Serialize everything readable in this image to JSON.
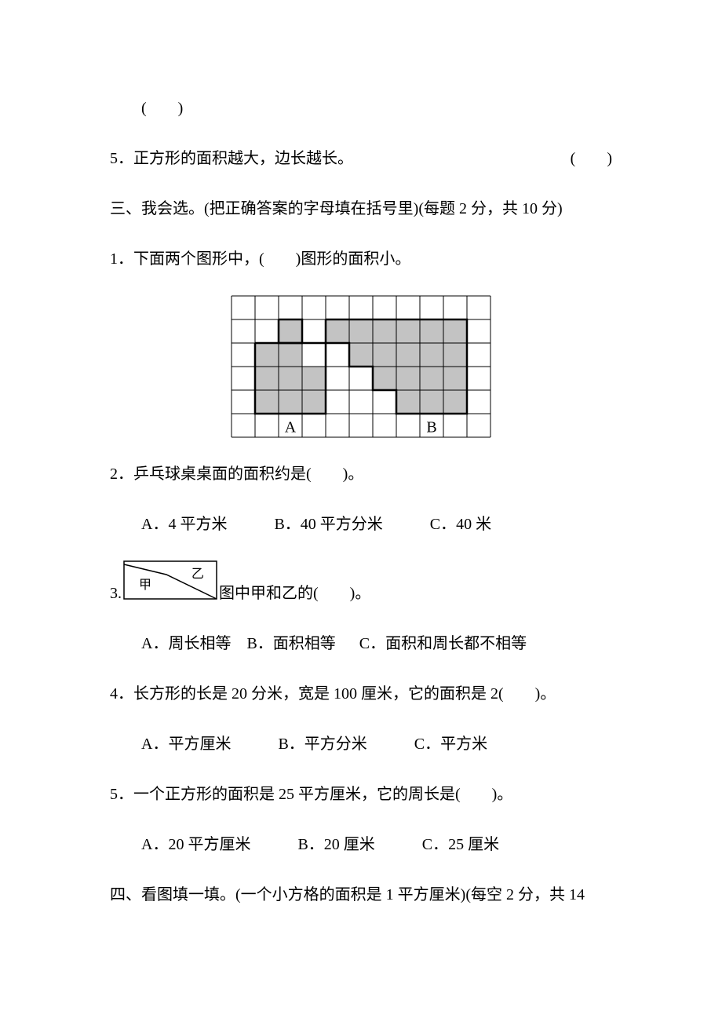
{
  "blank_paren": "(　　)",
  "q_prev_5": "5．正方形的面积越大，边长越长。",
  "q_prev_5_paren": "(　　)",
  "section3_title": "三、我会选。(把正确答案的字母填在括号里)(每题 2 分，共 10 分)",
  "s3q1": "1．下面两个图形中，(　　)图形的面积小。",
  "grid": {
    "cell": 30,
    "cols": 11,
    "rows": 6,
    "stroke": "#000000",
    "fill_shape": "#c3c3c3",
    "bg": "#ffffff",
    "labelA": "A",
    "labelB": "B",
    "labelA_pos": {
      "col": 2,
      "row": 5
    },
    "labelB_pos": {
      "col": 8,
      "row": 5
    },
    "shaded": [
      [
        2,
        1
      ],
      [
        1,
        2
      ],
      [
        2,
        2
      ],
      [
        1,
        3
      ],
      [
        2,
        3
      ],
      [
        3,
        3
      ],
      [
        1,
        4
      ],
      [
        2,
        4
      ],
      [
        3,
        4
      ],
      [
        4,
        1
      ],
      [
        5,
        1
      ],
      [
        6,
        1
      ],
      [
        7,
        1
      ],
      [
        8,
        1
      ],
      [
        9,
        1
      ],
      [
        5,
        2
      ],
      [
        6,
        2
      ],
      [
        7,
        2
      ],
      [
        8,
        2
      ],
      [
        9,
        2
      ],
      [
        6,
        3
      ],
      [
        7,
        3
      ],
      [
        8,
        3
      ],
      [
        9,
        3
      ],
      [
        7,
        4
      ],
      [
        8,
        4
      ],
      [
        9,
        4
      ]
    ],
    "boldA": [
      [
        1,
        2
      ],
      [
        4,
        2
      ],
      [
        4,
        5
      ],
      [
        1,
        5
      ]
    ],
    "boldA_step": [
      [
        2,
        1
      ],
      [
        3,
        1
      ],
      [
        3,
        2
      ],
      [
        2,
        2
      ]
    ],
    "boldB": [
      [
        4,
        1
      ],
      [
        10,
        1
      ],
      [
        10,
        5
      ],
      [
        7,
        5
      ],
      [
        7,
        4
      ],
      [
        6,
        4
      ],
      [
        6,
        3
      ],
      [
        5,
        3
      ],
      [
        5,
        2
      ],
      [
        4,
        2
      ]
    ]
  },
  "s3q2": "2．乒乓球桌桌面的面积约是(　　)。",
  "s3q2_A": "A．4 平方米",
  "s3q2_B": "B．40 平方分米",
  "s3q2_C": "C．40 米",
  "s3q3_pre": "3.",
  "s3q3_post": "图中甲和乙的(　　)。",
  "s3q3_jia": "甲",
  "s3q3_yi": "乙",
  "s3q3_A": "A．周长相等",
  "s3q3_B": "B．面积相等",
  "s3q3_C": "C．面积和周长都不相等",
  "s3q4": "4．长方形的长是 20 分米，宽是 100 厘米，它的面积是 2(　　)。",
  "s3q4_A": "A．平方厘米",
  "s3q4_B": "B．平方分米",
  "s3q4_C": "C．平方米",
  "s3q5": "5．一个正方形的面积是 25 平方厘米，它的周长是(　　)。",
  "s3q5_A": "A．20 平方厘米",
  "s3q5_B": "B．20 厘米",
  "s3q5_C": "C．25 厘米",
  "section4_title": "四、看图填一填。(一个小方格的面积是 1 平方厘米)(每空 2 分，共 14"
}
